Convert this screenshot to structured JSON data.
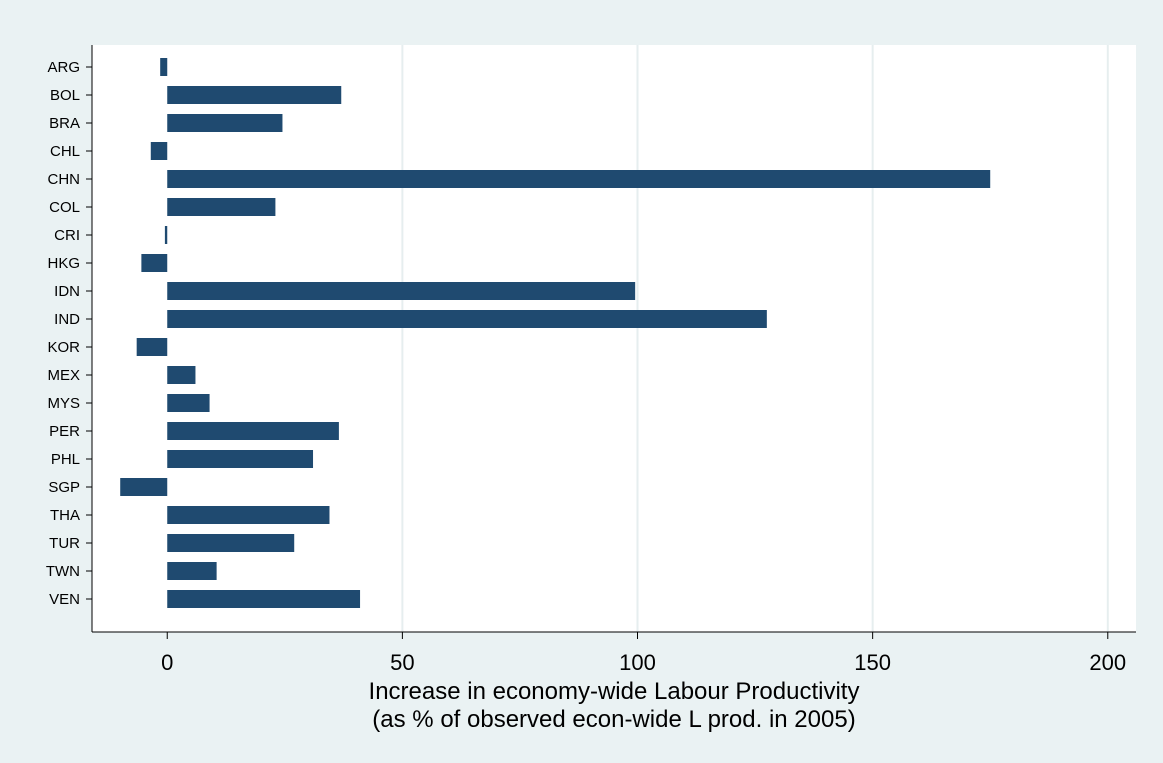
{
  "chart_data": {
    "type": "bar",
    "orientation": "horizontal",
    "categories": [
      "ARG",
      "BOL",
      "BRA",
      "CHL",
      "CHN",
      "COL",
      "CRI",
      "HKG",
      "IDN",
      "IND",
      "KOR",
      "MEX",
      "MYS",
      "PER",
      "PHL",
      "SGP",
      "THA",
      "TUR",
      "TWN",
      "VEN"
    ],
    "values": [
      -1.5,
      37,
      24.5,
      -3.5,
      175,
      23,
      -0.5,
      -5.5,
      99.5,
      127.5,
      -6.5,
      6,
      9,
      36.5,
      31,
      -10,
      34.5,
      27,
      10.5,
      41
    ],
    "xlabel_line1": "Increase in economy-wide Labour Productivity",
    "xlabel_line2": "(as % of observed econ-wide L prod. in 2005)",
    "xlim": [
      -16,
      206
    ],
    "xticks": [
      0,
      50,
      100,
      150,
      200
    ],
    "grid": true,
    "colors": {
      "bar": "#1f4a70",
      "plot_background": "#ffffff",
      "page_background": "#eaf2f3",
      "gridline": "#e6eeef"
    }
  }
}
